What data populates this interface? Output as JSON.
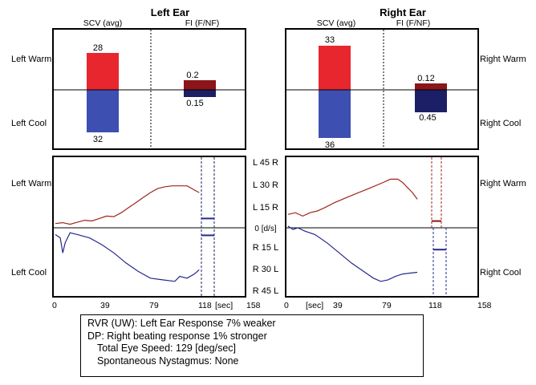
{
  "chart_data": {
    "type": "bar",
    "panels": {
      "left": {
        "title": "Left Ear",
        "scv_header": "SCV (avg)",
        "fi_header": "FI (F/NF)",
        "warm_label": "Left Warm",
        "cool_label": "Left Cool",
        "scv_warm": 28,
        "scv_cool": 32,
        "fi_warm": "0.2",
        "fi_cool": "0.15",
        "fi_warm_value": 0.2,
        "fi_cool_value": 0.15
      },
      "right": {
        "title": "Right Ear",
        "scv_header": "SCV (avg)",
        "fi_header": "FI (F/NF)",
        "warm_label": "Right Warm",
        "cool_label": "Right Cool",
        "scv_warm": 33,
        "scv_cool": 36,
        "fi_warm": "0.12",
        "fi_cool": "0.45",
        "fi_warm_value": 0.12,
        "fi_cool_value": 0.45
      }
    },
    "velocity_axis": {
      "ticks": [
        "L 45 R",
        "L 30 R",
        "L 15 R",
        "0 [d/s]",
        "R 15 L",
        "R 30 L",
        "R 45 L"
      ],
      "values": [
        45,
        30,
        15,
        0,
        -15,
        -30,
        -45
      ]
    },
    "time_axis": {
      "ticks": [
        "0",
        "39",
        "79",
        "118",
        "158"
      ],
      "values": [
        0,
        39,
        79,
        118,
        158
      ],
      "unit": "[sec]",
      "xlim": [
        0,
        158
      ]
    },
    "traces": {
      "left_warm": [
        [
          2,
          3
        ],
        [
          8,
          3.6
        ],
        [
          14,
          2.5
        ],
        [
          20,
          3.9
        ],
        [
          26,
          5.3
        ],
        [
          32,
          4.8
        ],
        [
          38,
          6.5
        ],
        [
          44,
          8.2
        ],
        [
          50,
          7.8
        ],
        [
          56,
          10.6
        ],
        [
          62,
          14.1
        ],
        [
          68,
          17.6
        ],
        [
          74,
          21.2
        ],
        [
          80,
          24.7
        ],
        [
          86,
          27.5
        ],
        [
          92,
          28.8
        ],
        [
          98,
          29.4
        ],
        [
          104,
          29.4
        ],
        [
          110,
          29.4
        ],
        [
          116,
          26.5
        ],
        [
          120,
          24.7
        ]
      ],
      "left_cool": [
        [
          2,
          -4.7
        ],
        [
          6,
          -7.1
        ],
        [
          8,
          -17.6
        ],
        [
          10,
          -10.6
        ],
        [
          14,
          -3.5
        ],
        [
          20,
          -4.7
        ],
        [
          30,
          -7.1
        ],
        [
          40,
          -11.8
        ],
        [
          50,
          -17.6
        ],
        [
          60,
          -24.7
        ],
        [
          70,
          -30.6
        ],
        [
          80,
          -35.3
        ],
        [
          90,
          -36.5
        ],
        [
          100,
          -37.6
        ],
        [
          104,
          -34.1
        ],
        [
          110,
          -35.3
        ],
        [
          116,
          -32.4
        ],
        [
          120,
          -29.4
        ]
      ],
      "right_warm": [
        [
          2,
          9.4
        ],
        [
          8,
          10.6
        ],
        [
          14,
          8.2
        ],
        [
          20,
          10.6
        ],
        [
          26,
          11.8
        ],
        [
          32,
          14.1
        ],
        [
          40,
          17.6
        ],
        [
          50,
          21.2
        ],
        [
          60,
          24.7
        ],
        [
          70,
          28.2
        ],
        [
          80,
          31.8
        ],
        [
          86,
          34.1
        ],
        [
          92,
          34.1
        ],
        [
          96,
          31.8
        ],
        [
          100,
          28.2
        ],
        [
          104,
          24.7
        ],
        [
          108,
          20
        ]
      ],
      "right_cool": [
        [
          2,
          1.2
        ],
        [
          6,
          -1.2
        ],
        [
          10,
          0
        ],
        [
          16,
          -2.4
        ],
        [
          24,
          -4.7
        ],
        [
          34,
          -10.6
        ],
        [
          44,
          -17.6
        ],
        [
          54,
          -24.7
        ],
        [
          64,
          -30.6
        ],
        [
          72,
          -35.3
        ],
        [
          78,
          -37.6
        ],
        [
          84,
          -36.5
        ],
        [
          90,
          -34.1
        ],
        [
          96,
          -32.4
        ],
        [
          102,
          -31.8
        ],
        [
          108,
          -31.2
        ]
      ]
    },
    "fi_segments": {
      "left_warm": 6.5,
      "left_cool": -5.3,
      "right_warm": 4.7,
      "right_cool": -15.3
    }
  },
  "summary": {
    "line1": "RVR (UW): Left Ear Response 7% weaker",
    "line2": "DP: Right beating response 1% stronger",
    "line3": "Total Eye Speed: 129 [deg/sec]",
    "line4": "Spontaneous Nystagmus: None"
  },
  "colors": {
    "warm": "#e8262e",
    "cool": "#3d4fb0",
    "fi_warm": "#8b1518",
    "fi_cool": "#1c1f66",
    "trace_warm": "#a0251a",
    "trace_cool": "#26288c"
  }
}
